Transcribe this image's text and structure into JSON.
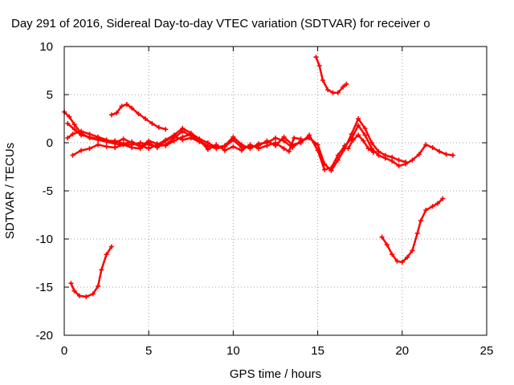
{
  "chart_data": {
    "type": "scatter",
    "title": "Day 291 of 2016, Sidereal Day-to-day VTEC variation (SDTVAR) for receiver o",
    "xlabel": "GPS time / hours",
    "ylabel": "SDTVAR / TECUs",
    "xlim": [
      0,
      25
    ],
    "ylim": [
      -20,
      10
    ],
    "xticks": [
      0,
      5,
      10,
      15,
      20,
      25
    ],
    "yticks": [
      -20,
      -15,
      -10,
      -5,
      0,
      5,
      10
    ],
    "xtick_labels": [
      "0",
      "5",
      "10",
      "15",
      "20",
      "25"
    ],
    "ytick_labels": [
      "-20",
      "-15",
      "-10",
      "-5",
      "0",
      "5",
      "10"
    ],
    "grid": true,
    "legend": "none",
    "color": "#ff0000",
    "series": [
      {
        "points": [
          [
            0.0,
            3.2
          ],
          [
            0.3,
            2.7
          ],
          [
            0.6,
            1.9
          ],
          [
            1.0,
            1.0
          ],
          [
            1.5,
            0.5
          ],
          [
            2.0,
            0.3
          ],
          [
            2.5,
            0.1
          ],
          [
            3.0,
            -0.1
          ],
          [
            3.5,
            -0.2
          ],
          [
            4.0,
            -0.2
          ],
          [
            4.5,
            0.0
          ],
          [
            5.0,
            -0.2
          ],
          [
            5.5,
            -0.4
          ],
          [
            6.0,
            -0.2
          ],
          [
            6.5,
            0.5
          ],
          [
            7.0,
            1.2
          ],
          [
            7.5,
            0.7
          ],
          [
            8.0,
            0.2
          ],
          [
            8.5,
            -0.3
          ],
          [
            9.0,
            -0.6
          ],
          [
            9.5,
            -0.4
          ],
          [
            10.0,
            0.3
          ],
          [
            10.5,
            -0.5
          ],
          [
            11.0,
            -0.4
          ],
          [
            11.5,
            -0.3
          ],
          [
            12.0,
            0.2
          ],
          [
            12.5,
            -0.3
          ],
          [
            13.0,
            0.6
          ],
          [
            13.5,
            -0.2
          ],
          [
            14.0,
            0.0
          ],
          [
            14.5,
            0.8
          ],
          [
            15.0,
            -0.8
          ],
          [
            15.4,
            -2.8
          ],
          [
            15.8,
            -2.6
          ],
          [
            16.2,
            -1.3
          ],
          [
            16.6,
            -0.3
          ],
          [
            17.0,
            0.4
          ],
          [
            17.4,
            1.8
          ],
          [
            17.8,
            0.8
          ],
          [
            18.2,
            -0.6
          ],
          [
            18.6,
            -1.3
          ],
          [
            19.0,
            -1.6
          ],
          [
            19.4,
            -1.9
          ],
          [
            19.8,
            -2.4
          ],
          [
            20.2,
            -2.2
          ],
          [
            20.6,
            -1.8
          ],
          [
            21.0,
            -1.2
          ],
          [
            21.4,
            -0.2
          ],
          [
            21.8,
            -0.5
          ],
          [
            22.2,
            -0.9
          ],
          [
            22.6,
            -1.2
          ],
          [
            23.0,
            -1.3
          ]
        ]
      },
      {
        "points": [
          [
            0.2,
            2.0
          ],
          [
            0.6,
            1.4
          ],
          [
            1.0,
            0.8
          ],
          [
            1.5,
            0.6
          ],
          [
            2.0,
            0.4
          ],
          [
            2.5,
            0.2
          ],
          [
            3.0,
            0.2
          ],
          [
            3.5,
            -0.1
          ],
          [
            4.0,
            0.1
          ],
          [
            4.5,
            -0.3
          ],
          [
            5.0,
            -0.6
          ],
          [
            5.5,
            -0.2
          ],
          [
            6.0,
            0.3
          ],
          [
            6.5,
            0.8
          ],
          [
            7.0,
            1.5
          ],
          [
            7.5,
            1.0
          ],
          [
            8.0,
            0.4
          ],
          [
            8.5,
            0.0
          ],
          [
            9.0,
            -0.5
          ],
          [
            9.5,
            -0.3
          ],
          [
            10.0,
            0.6
          ],
          [
            10.5,
            -0.2
          ],
          [
            11.0,
            -0.6
          ],
          [
            11.5,
            -0.1
          ],
          [
            12.0,
            0.0
          ],
          [
            12.5,
            0.5
          ],
          [
            13.0,
            0.2
          ],
          [
            13.5,
            -0.5
          ],
          [
            14.0,
            0.2
          ],
          [
            14.5,
            0.5
          ],
          [
            15.0,
            -0.2
          ],
          [
            15.4,
            -2.2
          ],
          [
            15.8,
            -2.9
          ],
          [
            16.2,
            -1.8
          ],
          [
            16.6,
            -0.6
          ],
          [
            17.0,
            0.9
          ],
          [
            17.4,
            2.5
          ],
          [
            17.8,
            1.5
          ],
          [
            18.2,
            0.0
          ],
          [
            18.6,
            -0.9
          ],
          [
            19.0,
            -1.3
          ],
          [
            19.4,
            -1.5
          ],
          [
            19.8,
            -1.8
          ],
          [
            20.2,
            -2.0
          ]
        ]
      },
      {
        "points": [
          [
            0.2,
            0.5
          ],
          [
            0.5,
            0.9
          ],
          [
            1.0,
            1.2
          ],
          [
            1.5,
            0.9
          ],
          [
            2.0,
            0.6
          ],
          [
            2.5,
            0.3
          ],
          [
            3.0,
            0.0
          ],
          [
            3.5,
            0.4
          ],
          [
            4.0,
            0.0
          ],
          [
            4.5,
            -0.4
          ],
          [
            5.0,
            0.2
          ],
          [
            5.5,
            -0.1
          ],
          [
            6.0,
            -0.3
          ],
          [
            6.5,
            0.2
          ],
          [
            7.0,
            0.6
          ],
          [
            7.5,
            0.9
          ],
          [
            8.0,
            0.3
          ],
          [
            8.5,
            -0.7
          ],
          [
            9.0,
            -0.2
          ],
          [
            9.5,
            -0.8
          ],
          [
            10.0,
            -0.4
          ],
          [
            10.5,
            -0.8
          ],
          [
            11.0,
            -0.2
          ],
          [
            11.5,
            -0.6
          ],
          [
            12.0,
            -0.3
          ],
          [
            12.5,
            0.0
          ],
          [
            13.0,
            -0.6
          ],
          [
            13.3,
            -0.9
          ],
          [
            13.6,
            0.5
          ],
          [
            14.0,
            0.4
          ]
        ]
      },
      {
        "points": [
          [
            0.5,
            -1.3
          ],
          [
            1.0,
            -0.8
          ],
          [
            1.5,
            -0.6
          ],
          [
            2.0,
            -0.2
          ],
          [
            2.5,
            -0.4
          ],
          [
            3.0,
            -0.5
          ],
          [
            3.5,
            -0.2
          ],
          [
            4.0,
            -0.5
          ],
          [
            4.5,
            -0.6
          ],
          [
            5.0,
            0.0
          ],
          [
            5.5,
            -0.5
          ],
          [
            6.0,
            0.2
          ],
          [
            6.5,
            0.7
          ],
          [
            7.0,
            0.3
          ],
          [
            7.5,
            0.5
          ],
          [
            8.0,
            0.1
          ],
          [
            8.5,
            -0.4
          ]
        ]
      },
      {
        "points": [
          [
            16.8,
            -0.6
          ],
          [
            17.1,
            0.3
          ],
          [
            17.4,
            0.8
          ],
          [
            17.7,
            0.2
          ],
          [
            18.0,
            -0.6
          ],
          [
            18.3,
            -1.0
          ]
        ]
      },
      {
        "points": [
          [
            2.8,
            2.9
          ],
          [
            3.1,
            3.1
          ],
          [
            3.4,
            3.8
          ],
          [
            3.7,
            4.0
          ],
          [
            4.0,
            3.6
          ],
          [
            4.4,
            3.0
          ],
          [
            4.8,
            2.5
          ],
          [
            5.2,
            2.0
          ],
          [
            5.6,
            1.6
          ],
          [
            6.0,
            1.4
          ]
        ]
      },
      {
        "points": [
          [
            14.9,
            8.9
          ],
          [
            15.1,
            8.0
          ],
          [
            15.3,
            6.5
          ],
          [
            15.6,
            5.5
          ],
          [
            15.9,
            5.2
          ],
          [
            16.2,
            5.2
          ],
          [
            16.5,
            5.8
          ],
          [
            16.7,
            6.1
          ]
        ]
      },
      {
        "points": [
          [
            0.4,
            -14.6
          ],
          [
            0.6,
            -15.4
          ],
          [
            0.9,
            -15.9
          ],
          [
            1.3,
            -16.0
          ],
          [
            1.7,
            -15.7
          ],
          [
            2.0,
            -14.9
          ],
          [
            2.2,
            -13.2
          ],
          [
            2.5,
            -11.6
          ],
          [
            2.8,
            -10.8
          ]
        ]
      },
      {
        "points": [
          [
            18.8,
            -9.8
          ],
          [
            19.1,
            -10.6
          ],
          [
            19.4,
            -11.6
          ],
          [
            19.7,
            -12.3
          ],
          [
            20.0,
            -12.4
          ],
          [
            20.3,
            -11.9
          ],
          [
            20.6,
            -11.2
          ],
          [
            20.9,
            -9.4
          ],
          [
            21.1,
            -8.1
          ],
          [
            21.4,
            -7.0
          ],
          [
            21.8,
            -6.6
          ],
          [
            22.1,
            -6.3
          ],
          [
            22.4,
            -5.8
          ]
        ]
      }
    ]
  }
}
